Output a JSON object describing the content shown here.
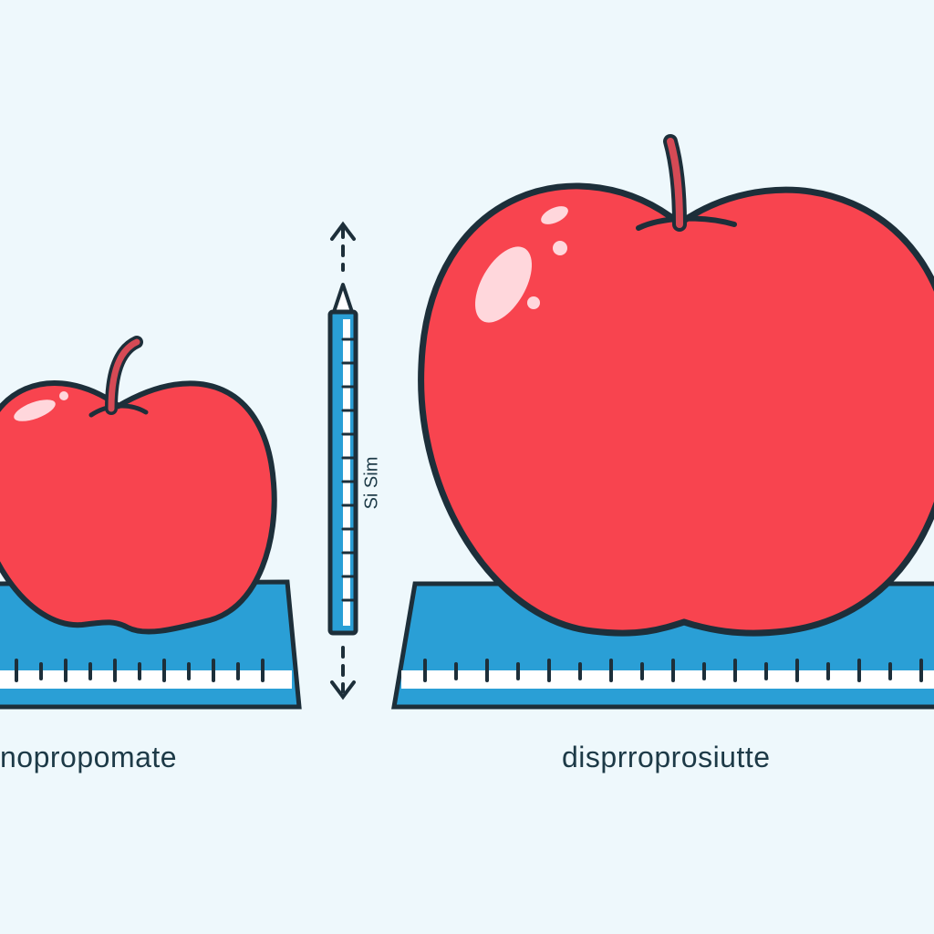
{
  "labels": {
    "left_caption": "nopropomate",
    "right_caption": "disprroprosiutte",
    "ruler_text": "Si Sim"
  },
  "colors": {
    "background": "#eef8fc",
    "apple_red": "#f8444f",
    "apple_highlight": "#ffd7dc",
    "stem": "#d64a55",
    "outline": "#1d2f3a",
    "ruler_blue": "#2a9fd6",
    "ruler_stripe": "#ffffff"
  },
  "icons": [
    "small-apple-icon",
    "large-apple-icon",
    "vertical-ruler-icon",
    "arrow-up-icon",
    "arrow-down-icon"
  ]
}
